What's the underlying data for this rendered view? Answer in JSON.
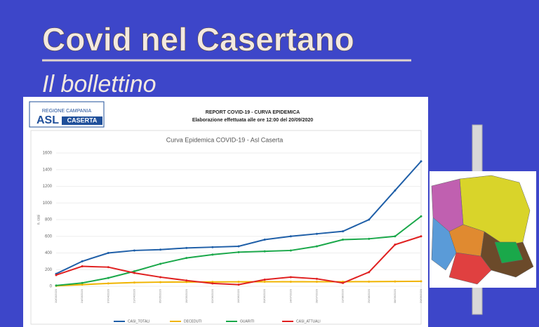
{
  "header": {
    "title": "Covid nel Casertano",
    "subtitle": "Il bollettino",
    "logo_region": "REGIONE CAMPANIA",
    "logo_asl": "ASL",
    "logo_city": "CASERTA",
    "report_title": "REPORT COVID-19 - CURVA EPIDEMICA",
    "report_time": "Elaborazione effettuata alle ore 12:00 del 20/09/2020"
  },
  "chart_data": {
    "type": "line",
    "title": "Curva Epidemica COVID-19 - Asl Caserta",
    "y_label": "n. casi",
    "categories": [
      "10/03/2020",
      "24/03/2020",
      "07/04/2020",
      "21/04/2020",
      "05/05/2020",
      "19/05/2020",
      "02/06/2020",
      "16/06/2020",
      "30/06/2020",
      "14/07/2020",
      "28/07/2020",
      "11/08/2020",
      "25/08/2020",
      "08/09/2020",
      "20/09/2020"
    ],
    "series": [
      {
        "name": "CASI_TOTALI",
        "color": "#1f5fa8",
        "values": [
          150,
          300,
          400,
          430,
          440,
          460,
          470,
          480,
          560,
          600,
          630,
          660,
          800,
          1150,
          1500
        ]
      },
      {
        "name": "DECEDUTI",
        "color": "#f0b400",
        "values": [
          5,
          20,
          35,
          45,
          50,
          52,
          53,
          54,
          55,
          55,
          55,
          55,
          56,
          58,
          60
        ]
      },
      {
        "name": "GUARITI",
        "color": "#1aa84a",
        "values": [
          10,
          40,
          100,
          180,
          270,
          340,
          380,
          410,
          420,
          430,
          480,
          560,
          570,
          600,
          840
        ]
      },
      {
        "name": "CASI_ATTUALI",
        "color": "#e02020",
        "values": [
          135,
          240,
          230,
          160,
          110,
          70,
          35,
          20,
          80,
          110,
          90,
          40,
          170,
          500,
          600
        ]
      }
    ],
    "ylim": [
      0,
      1600
    ],
    "yticks": [
      0,
      200,
      400,
      600,
      800,
      1000,
      1200,
      1400,
      1600
    ],
    "grid": true,
    "legend": "bottom"
  }
}
